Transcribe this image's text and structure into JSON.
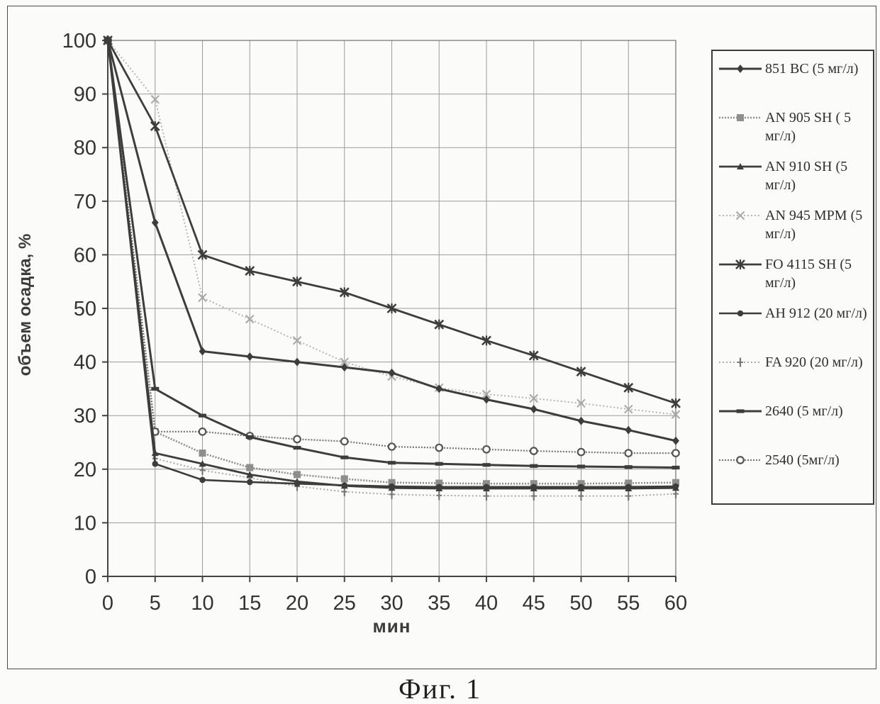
{
  "figure": {
    "caption": "Фиг. 1"
  },
  "chart_data": {
    "type": "line",
    "title": "",
    "xlabel": "мин",
    "ylabel": "объем осадка, %",
    "xlim": [
      0,
      60
    ],
    "ylim": [
      0,
      100
    ],
    "xticks": [
      0,
      5,
      10,
      15,
      20,
      25,
      30,
      35,
      40,
      45,
      50,
      55,
      60
    ],
    "yticks": [
      0,
      10,
      20,
      30,
      40,
      50,
      60,
      70,
      80,
      90,
      100
    ],
    "grid": true,
    "legend_position": "right",
    "x": [
      0,
      5,
      10,
      15,
      20,
      25,
      30,
      35,
      40,
      45,
      50,
      55,
      60
    ],
    "series": [
      {
        "name": "851 BC (5 мг/л)",
        "values": [
          100,
          66,
          42,
          41,
          40,
          39,
          38,
          35,
          33,
          31.2,
          29,
          27.3,
          25.3
        ],
        "style": {
          "stroke": "#3d3d3d",
          "width": 3,
          "dash": "",
          "marker": "diamond",
          "marker_color": "#3d3d3d",
          "marker_size": 12
        }
      },
      {
        "name": "AN 905 SH ( 5 мг/л)",
        "values": [
          100,
          27,
          23,
          20.3,
          19,
          18.2,
          17.5,
          17.4,
          17.3,
          17.3,
          17.3,
          17.4,
          17.5
        ],
        "style": {
          "stroke": "#8e8e8e",
          "width": 2.6,
          "dash": "2 2",
          "marker": "square",
          "marker_color": "#8e8e8e",
          "marker_size": 10
        }
      },
      {
        "name": "AN 910 SH (5 мг/л)",
        "values": [
          100,
          23,
          21,
          19,
          17.7,
          16.9,
          16.5,
          16.4,
          16.4,
          16.4,
          16.4,
          16.4,
          16.5
        ],
        "style": {
          "stroke": "#3d3d3d",
          "width": 2.8,
          "dash": "",
          "marker": "triangle",
          "marker_color": "#3d3d3d",
          "marker_size": 10
        }
      },
      {
        "name": "AN 945 MPM (5 мг/л)",
        "values": [
          100,
          89,
          52,
          48,
          44,
          40,
          37.3,
          35.2,
          34,
          33.2,
          32.3,
          31.2,
          30.2
        ],
        "style": {
          "stroke": "#b5b5b5",
          "width": 2,
          "dash": "2 3",
          "marker": "xlight",
          "marker_color": "#a8a8a8",
          "marker_size": 11
        }
      },
      {
        "name": "FO 4115 SH (5 мг/л)",
        "values": [
          100,
          84,
          60,
          57,
          55,
          53,
          50,
          47,
          44,
          41.2,
          38.2,
          35.2,
          32.3
        ],
        "style": {
          "stroke": "#3d3d3d",
          "width": 2.8,
          "dash": "",
          "marker": "star",
          "marker_color": "#3d3d3d",
          "marker_size": 12
        }
      },
      {
        "name": "АН 912 (20 мг/л)",
        "values": [
          100,
          21,
          18,
          17.6,
          17.3,
          17,
          16.8,
          16.7,
          16.7,
          16.7,
          16.7,
          16.7,
          16.8
        ],
        "style": {
          "stroke": "#3d3d3d",
          "width": 2.6,
          "dash": "",
          "marker": "circle",
          "marker_color": "#3d3d3d",
          "marker_size": 9
        }
      },
      {
        "name": "FA 920 (20 мг/л)",
        "values": [
          100,
          22,
          19.8,
          18.4,
          16.8,
          15.8,
          15.3,
          15.1,
          15,
          15,
          15,
          15,
          15.4
        ],
        "style": {
          "stroke": "#a9a9a9",
          "width": 2,
          "dash": "2 3",
          "marker": "plus",
          "marker_color": "#777777",
          "marker_size": 13
        }
      },
      {
        "name": "2640 (5 мг/л)",
        "values": [
          100,
          35,
          30,
          26,
          24,
          22.2,
          21.2,
          21,
          20.8,
          20.6,
          20.5,
          20.4,
          20.3
        ],
        "style": {
          "stroke": "#3d3d3d",
          "width": 3,
          "dash": "",
          "marker": "hbar",
          "marker_color": "#3d3d3d",
          "marker_size": 11
        }
      },
      {
        "name": "2540 (5мг/л)",
        "values": [
          100,
          27,
          27,
          26.2,
          25.6,
          25.2,
          24.2,
          24,
          23.7,
          23.4,
          23.2,
          23,
          23
        ],
        "style": {
          "stroke": "#767676",
          "width": 2.2,
          "dash": "2 2",
          "marker": "circleopen",
          "marker_color": "#555555",
          "marker_size": 10
        }
      }
    ]
  },
  "colors": {
    "paper": "#fbfbf9",
    "grid": "#9b9b9b",
    "axis": "#444444",
    "tick_text": "#333333"
  }
}
